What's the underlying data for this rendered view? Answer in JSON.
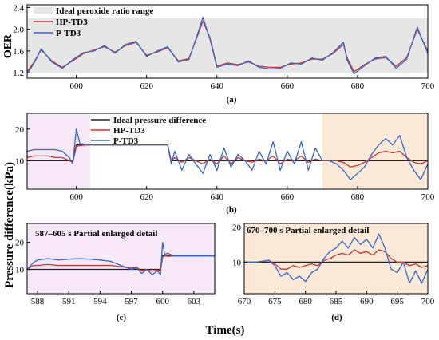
{
  "figure": {
    "shared_ylabel": "Pressure difference(kPa)",
    "shared_xlabel": "Time(s)"
  },
  "colors": {
    "hp": "#cc3333",
    "p": "#3366cc",
    "ideal": "#222222",
    "band": "#e6e6e6",
    "pink": "#f7e8f7",
    "peach": "#fbe9d8"
  },
  "chart_data": [
    {
      "id": "a",
      "type": "line",
      "caption": "(a)",
      "ylabel": "OER",
      "xlim": [
        586,
        700
      ],
      "ylim": [
        1.1,
        2.45
      ],
      "xticks": [
        600,
        620,
        640,
        660,
        680,
        700
      ],
      "yticks": [
        1.2,
        1.6,
        2.0,
        2.4
      ],
      "band": {
        "name": "Ideal peroxide ratio range",
        "range": [
          1.2,
          2.2
        ]
      },
      "x": [
        586,
        588,
        590,
        593,
        596,
        599,
        602,
        605,
        608,
        611,
        614,
        617,
        620,
        623,
        626,
        629,
        632,
        634,
        636,
        638,
        640,
        643,
        646,
        649,
        652,
        655,
        658,
        661,
        664,
        667,
        670,
        673,
        676,
        677,
        679,
        682,
        685,
        688,
        691,
        694,
        697,
        700
      ],
      "series": [
        {
          "name": "HP-TD3",
          "color_key": "hp",
          "values": [
            1.22,
            1.4,
            1.62,
            1.42,
            1.3,
            1.42,
            1.55,
            1.62,
            1.68,
            1.58,
            1.7,
            1.76,
            1.52,
            1.58,
            1.66,
            1.42,
            1.46,
            1.8,
            2.15,
            1.85,
            1.32,
            1.38,
            1.35,
            1.4,
            1.32,
            1.3,
            1.3,
            1.36,
            1.38,
            1.45,
            1.45,
            1.55,
            1.72,
            1.48,
            1.22,
            1.35,
            1.45,
            1.48,
            1.32,
            1.48,
            2.0,
            1.6
          ]
        },
        {
          "name": "P-TD3",
          "color_key": "p",
          "values": [
            1.18,
            1.38,
            1.64,
            1.4,
            1.28,
            1.44,
            1.57,
            1.6,
            1.7,
            1.56,
            1.72,
            1.78,
            1.5,
            1.6,
            1.68,
            1.4,
            1.44,
            1.82,
            2.22,
            1.82,
            1.3,
            1.36,
            1.33,
            1.42,
            1.3,
            1.27,
            1.28,
            1.38,
            1.36,
            1.47,
            1.43,
            1.57,
            1.76,
            1.44,
            1.18,
            1.33,
            1.47,
            1.5,
            1.28,
            1.45,
            2.04,
            1.55
          ]
        }
      ]
    },
    {
      "id": "b",
      "type": "line",
      "caption": "(b)",
      "xlim": [
        586,
        700
      ],
      "ylim": [
        1,
        25
      ],
      "xticks": [
        600,
        620,
        640,
        660,
        680,
        700
      ],
      "yticks": [
        10,
        20
      ],
      "regions": [
        {
          "range": [
            586,
            604
          ],
          "color_key": "pink"
        },
        {
          "range": [
            670,
            700
          ],
          "color_key": "peach"
        }
      ],
      "x": [
        586,
        588,
        590,
        592,
        594,
        596,
        598,
        599,
        600,
        601,
        603,
        606,
        610,
        614,
        618,
        622,
        626,
        627,
        628,
        630,
        632,
        634,
        636,
        638,
        640,
        642,
        644,
        646,
        648,
        650,
        652,
        654,
        656,
        658,
        660,
        662,
        664,
        666,
        668,
        670,
        672,
        674,
        676,
        678,
        680,
        682,
        684,
        686,
        688,
        690,
        692,
        694,
        696,
        698,
        700
      ],
      "series": [
        {
          "name": "Ideal pressure difference",
          "color_key": "ideal",
          "values": [
            10,
            10,
            10,
            10,
            10,
            10,
            10,
            10,
            15,
            15,
            15,
            15,
            15,
            15,
            15,
            15,
            15,
            10,
            10,
            10,
            10,
            10,
            10,
            10,
            10,
            10,
            10,
            10,
            10,
            10,
            10,
            10,
            10,
            10,
            10,
            10,
            10,
            10,
            10,
            10,
            10,
            10,
            10,
            10,
            10,
            10,
            10,
            10,
            10,
            10,
            10,
            10,
            10,
            10,
            10
          ]
        },
        {
          "name": "HP-TD3",
          "color_key": "hp",
          "values": [
            11,
            11.5,
            11.5,
            11.5,
            11,
            11,
            10,
            9.5,
            14.5,
            14.8,
            15,
            15,
            15,
            15,
            15,
            15,
            15,
            10,
            11,
            9.5,
            11,
            10,
            9,
            10.5,
            9,
            11.5,
            9,
            11,
            10,
            9.5,
            10.5,
            10,
            11.5,
            9,
            10.5,
            10,
            11.5,
            9.5,
            10.5,
            10,
            10,
            10,
            9.5,
            8,
            8.5,
            9.5,
            11,
            12.5,
            13,
            12.5,
            13,
            11,
            9.5,
            9,
            10
          ]
        },
        {
          "name": "P-TD3",
          "color_key": "p",
          "values": [
            13,
            13.5,
            13.5,
            13.5,
            13.5,
            13,
            11,
            9,
            20,
            15.5,
            15,
            15,
            15,
            15,
            15,
            15,
            15,
            9,
            13,
            7,
            12,
            9,
            6,
            12,
            7,
            14,
            8,
            12,
            10,
            7,
            13,
            9,
            16,
            7,
            13,
            9,
            16,
            7,
            14,
            10,
            10,
            9,
            7,
            4,
            6,
            8,
            12,
            15,
            17,
            15,
            18,
            11,
            7,
            4,
            9
          ]
        }
      ]
    },
    {
      "id": "c",
      "type": "line",
      "caption": "(c)",
      "annotation": "587–605 s Partial enlarged detail",
      "xlim": [
        587,
        605
      ],
      "ylim": [
        1,
        27
      ],
      "xticks": [
        588,
        591,
        594,
        597,
        600,
        603
      ],
      "yticks": [
        10,
        20
      ],
      "x": [
        587,
        587.6,
        588,
        589,
        590,
        591,
        592,
        593,
        594,
        595,
        596,
        597,
        597.5,
        598,
        598.5,
        599,
        599.5,
        599.8,
        600,
        600.2,
        600.5,
        601,
        602,
        603,
        604,
        605
      ],
      "series": [
        {
          "name": "Ideal pressure difference",
          "color_key": "ideal",
          "values": [
            10,
            10,
            10,
            10,
            10,
            10,
            10,
            10,
            10,
            10,
            10,
            10,
            10,
            10,
            10,
            10,
            10,
            10,
            15,
            15,
            15,
            15,
            15,
            15,
            15,
            15
          ]
        },
        {
          "name": "HP-TD3",
          "color_key": "hp",
          "values": [
            10,
            11.5,
            11.5,
            11.8,
            11.5,
            11.5,
            11.5,
            11.5,
            11.5,
            11.5,
            11,
            10.5,
            10.8,
            9.5,
            10,
            9.3,
            9.8,
            9.5,
            14.5,
            15.2,
            14.8,
            15,
            15,
            15,
            15,
            15
          ]
        },
        {
          "name": "P-TD3",
          "color_key": "p",
          "values": [
            10,
            12.5,
            13.5,
            14,
            13.5,
            13.8,
            14,
            13.8,
            13.5,
            13,
            11.5,
            10,
            10.5,
            8.5,
            10,
            8,
            9.5,
            8,
            20,
            15.5,
            16,
            15,
            15,
            15,
            15,
            15
          ]
        }
      ]
    },
    {
      "id": "d",
      "type": "line",
      "caption": "(d)",
      "annotation": "670–700 s Partial enlarged detail",
      "xlim": [
        670,
        700
      ],
      "ylim": [
        1,
        21
      ],
      "xticks": [
        670,
        675,
        680,
        685,
        690,
        695,
        700
      ],
      "yticks": [
        10,
        20
      ],
      "x": [
        670,
        672,
        674,
        675,
        676,
        677,
        678,
        679,
        680,
        681,
        682,
        683,
        684,
        685,
        686,
        687,
        688,
        689,
        690,
        691,
        692,
        693,
        694,
        695,
        696,
        697,
        698,
        699,
        700
      ],
      "series": [
        {
          "name": "Ideal pressure difference",
          "color_key": "ideal",
          "values": [
            10,
            10,
            10,
            10,
            10,
            10,
            10,
            10,
            10,
            10,
            10,
            10,
            10,
            10,
            10,
            10,
            10,
            10,
            10,
            10,
            10,
            10,
            10,
            10,
            10,
            10,
            10,
            10,
            10
          ]
        },
        {
          "name": "HP-TD3",
          "color_key": "hp",
          "values": [
            10,
            10,
            10.5,
            9.5,
            8,
            8,
            9,
            8.5,
            9,
            9.5,
            9,
            10.5,
            11,
            12,
            12.5,
            12,
            13.5,
            12.5,
            13,
            12,
            13.5,
            13,
            11,
            10,
            10,
            9,
            9.5,
            8.5,
            9
          ]
        },
        {
          "name": "P-TD3",
          "color_key": "p",
          "values": [
            10,
            10,
            10.5,
            9,
            6,
            7,
            5,
            6,
            4.5,
            7,
            8,
            11,
            13,
            14,
            16,
            14,
            17,
            15,
            16.5,
            14,
            18,
            14,
            8,
            7,
            10,
            4,
            7.5,
            4,
            8
          ]
        }
      ]
    }
  ],
  "legends": {
    "a": [
      "Ideal peroxide ratio range",
      "HP-TD3",
      "P-TD3"
    ],
    "b": [
      "Ideal pressure difference",
      "HP-TD3",
      "P-TD3"
    ]
  }
}
